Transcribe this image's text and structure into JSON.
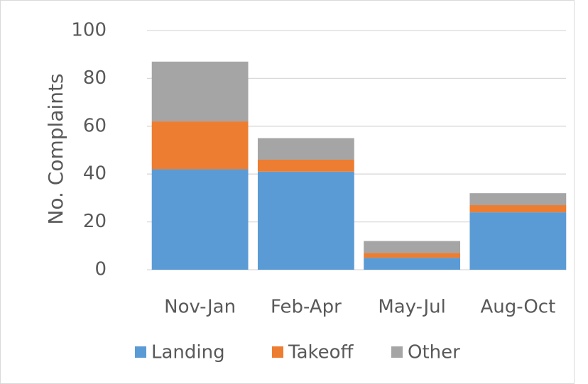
{
  "chart_data": {
    "type": "stacked_bar",
    "y_label": "No. Complaints",
    "categories": [
      "Nov-Jan",
      "Feb-Apr",
      "May-Jul",
      "Aug-Oct"
    ],
    "series": [
      {
        "name": "Landing",
        "color": "#5b9bd5",
        "values": [
          42,
          41,
          5,
          24
        ]
      },
      {
        "name": "Takeoff",
        "color": "#ed7d31",
        "values": [
          20,
          5,
          2,
          3
        ]
      },
      {
        "name": "Other",
        "color": "#a5a5a5",
        "values": [
          25,
          9,
          5,
          5
        ]
      }
    ],
    "ylim": [
      0,
      100
    ],
    "yticks": [
      0,
      20,
      40,
      60,
      80,
      100
    ],
    "grid": true,
    "legend": "bottom"
  }
}
